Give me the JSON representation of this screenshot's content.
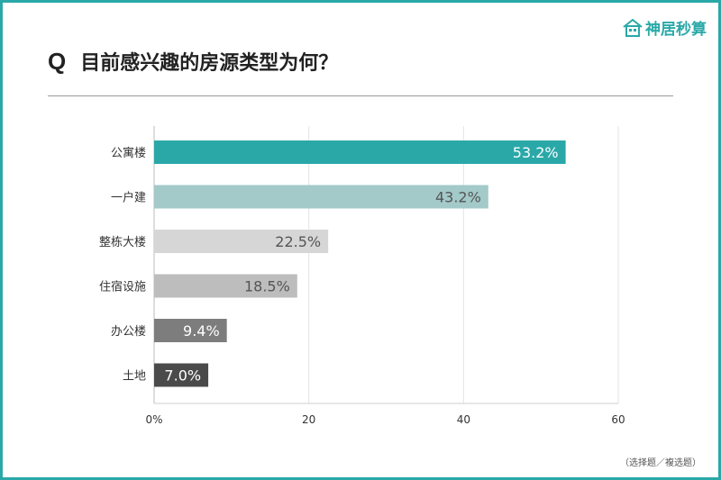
{
  "header": {
    "q_mark": "Q",
    "title": "目前感兴趣的房源类型为何？"
  },
  "logo": {
    "text": "神居秒算",
    "icon": "house-icon",
    "color": "#2aa8a8"
  },
  "footnote": "（选择题／複选题）",
  "chart_data": {
    "type": "bar",
    "orientation": "horizontal",
    "categories": [
      "公寓楼",
      "一户建",
      "整栋大楼",
      "住宿设施",
      "办公楼",
      "土地"
    ],
    "values": [
      53.2,
      43.2,
      22.5,
      18.5,
      9.4,
      7.0
    ],
    "value_labels": [
      "53.2%",
      "43.2%",
      "22.5%",
      "18.5%",
      "9.4%",
      "7.0%"
    ],
    "bar_colors": [
      "#2aa8a8",
      "#a3c9c9",
      "#d6d6d6",
      "#bdbdbd",
      "#7d7d7d",
      "#4a4a4a"
    ],
    "label_colors": [
      "#ffffff",
      "#555555",
      "#555555",
      "#555555",
      "#ffffff",
      "#ffffff"
    ],
    "xlim": [
      0,
      60
    ],
    "xticks": [
      0,
      20,
      40,
      60
    ],
    "xtick_labels": [
      "0%",
      "20",
      "40",
      "60"
    ],
    "grid": true,
    "xlabel": "",
    "ylabel": ""
  }
}
